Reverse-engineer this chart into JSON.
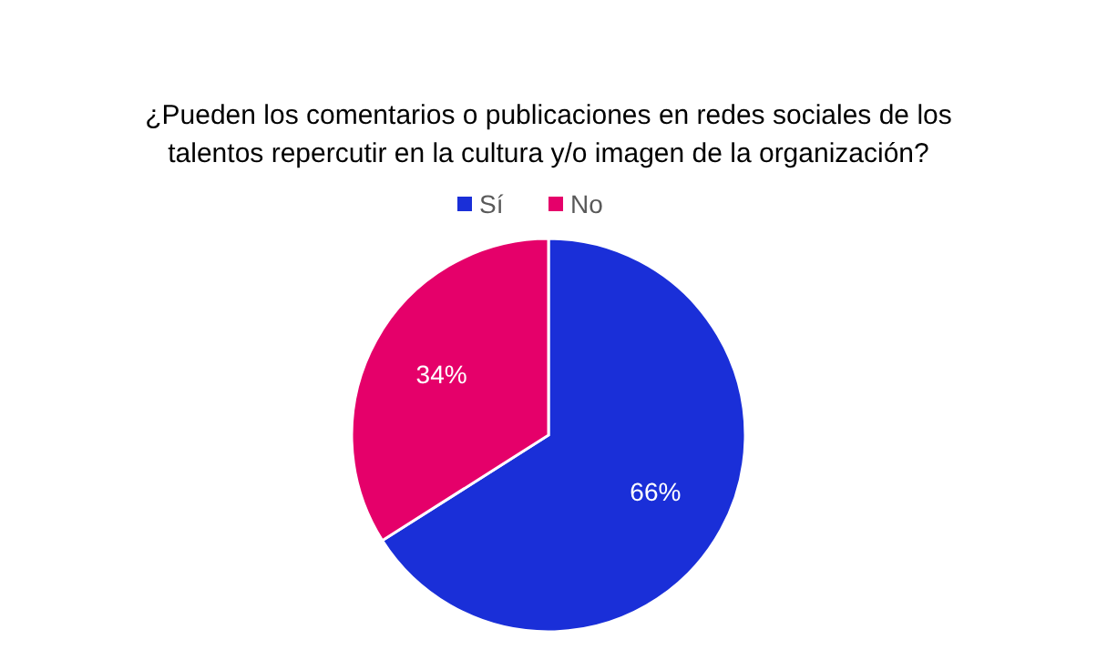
{
  "chart_data": {
    "type": "pie",
    "title": "¿Pueden los comentarios o publicaciones en redes sociales de los talentos repercutir en la cultura y/o imagen de la organización?",
    "categories": [
      "Sí",
      "No"
    ],
    "values": [
      66,
      34
    ],
    "colors": [
      "#1a2fd8",
      "#e5006a"
    ],
    "value_labels": [
      "66%",
      "34%"
    ],
    "legend": "top"
  }
}
